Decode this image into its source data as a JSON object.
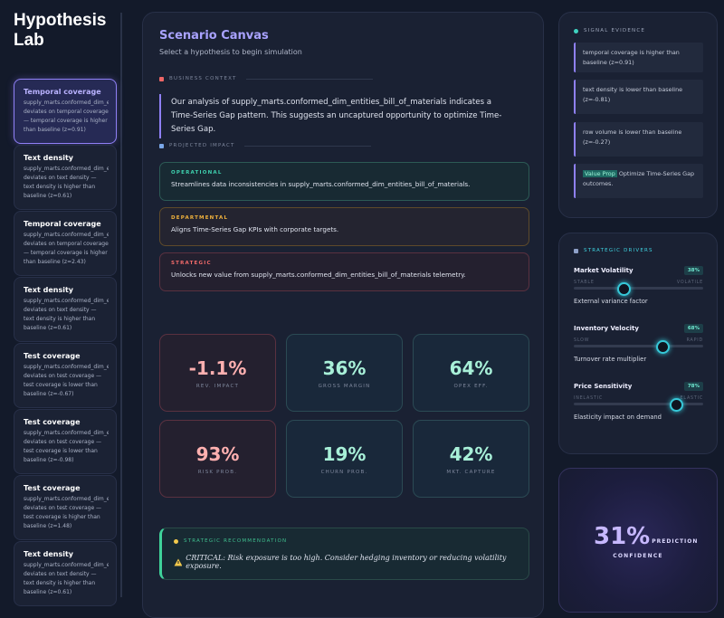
{
  "sidebar": {
    "title": "Hypothesis Lab",
    "hypotheses": [
      {
        "title": "Temporal coverage",
        "text": "supply_marts.conformed_dim_entities_bill_of_materials deviates on temporal coverage — temporal coverage is higher than baseline (z=0.91)"
      },
      {
        "title": "Text density",
        "text": "supply_marts.conformed_dim_entities_bill_of_materials deviates on text density — text density is higher than baseline (z=0.61)"
      },
      {
        "title": "Temporal coverage",
        "text": "supply_marts.conformed_dim_entities_bill_of_materials deviates on temporal coverage — temporal coverage is higher than baseline (z=2.43)"
      },
      {
        "title": "Text density",
        "text": "supply_marts.conformed_dim_entities_bill_of_materials deviates on text density — text density is higher than baseline (z=0.61)"
      },
      {
        "title": "Test coverage",
        "text": "supply_marts.conformed_dim_entities_bill_of_materials deviates on test coverage — test coverage is lower than baseline (z=-0.67)"
      },
      {
        "title": "Test coverage",
        "text": "supply_marts.conformed_dim_entities_bill_of_materials deviates on test coverage — test coverage is lower than baseline (z=-0.98)"
      },
      {
        "title": "Test coverage",
        "text": "supply_marts.conformed_dim_entities_bill_of_materials deviates on test coverage — test coverage is higher than baseline (z=1.48)"
      },
      {
        "title": "Text density",
        "text": "supply_marts.conformed_dim_entities_bill_of_materials deviates on text density — text density is higher than baseline (z=0.61)"
      }
    ]
  },
  "canvas": {
    "title": "Scenario Canvas",
    "subtitle": "Select a hypothesis to begin simulation",
    "context_heading": "BUSINESS CONTEXT",
    "context": "Our analysis of supply_marts.conformed_dim_entities_bill_of_materials indicates a Time-Series Gap pattern. This suggests an uncaptured opportunity to optimize Time-Series Gap.",
    "impact_heading": "PROJECTED IMPACT",
    "impacts": [
      {
        "label": "OPERATIONAL",
        "text": "Streamlines data inconsistencies in supply_marts.conformed_dim_entities_bill_of_materials."
      },
      {
        "label": "DEPARTMENTAL",
        "text": "Aligns Time-Series Gap KPIs with corporate targets."
      },
      {
        "label": "STRATEGIC",
        "text": "Unlocks new value from supply_marts.conformed_dim_entities_bill_of_materials telemetry."
      }
    ],
    "metrics": [
      {
        "value": "-1.1%",
        "label": "REV. IMPACT"
      },
      {
        "value": "36%",
        "label": "GROSS MARGIN"
      },
      {
        "value": "64%",
        "label": "OPEX EFF."
      },
      {
        "value": "93%",
        "label": "RISK PROB."
      },
      {
        "value": "19%",
        "label": "CHURN PROB."
      },
      {
        "value": "42%",
        "label": "MKT. CAPTURE"
      }
    ],
    "recommendation": {
      "heading": "STRATEGIC RECOMMENDATION",
      "text": "CRITICAL: Risk exposure is too high. Consider hedging inventory or reducing volatility exposure."
    }
  },
  "evidence": {
    "heading": "SIGNAL EVIDENCE",
    "items": [
      "temporal coverage is higher than baseline (z=0.91)",
      "text density is lower than baseline (z=-0.81)",
      "row volume is lower than baseline (z=-0.27)"
    ],
    "value_prop": {
      "tag": "Value Prop",
      "text": "Optimize Time-Series Gap outcomes."
    }
  },
  "drivers": {
    "heading": "STRATEGIC DRIVERS",
    "items": [
      {
        "name": "Market Volatility",
        "value": 38,
        "value_label": "38%",
        "low": "STABLE",
        "high": "VOLATILE",
        "description": "External variance factor"
      },
      {
        "name": "Inventory Velocity",
        "value": 68,
        "value_label": "68%",
        "low": "SLOW",
        "high": "RAPID",
        "description": "Turnover rate multiplier"
      },
      {
        "name": "Price Sensitivity",
        "value": 78,
        "value_label": "78%",
        "low": "INELASTIC",
        "high": "ELASTIC",
        "description": "Elasticity impact on demand"
      }
    ]
  },
  "confidence": {
    "value": "31%",
    "label": "PREDICTION",
    "caption": "CONFIDENCE"
  }
}
